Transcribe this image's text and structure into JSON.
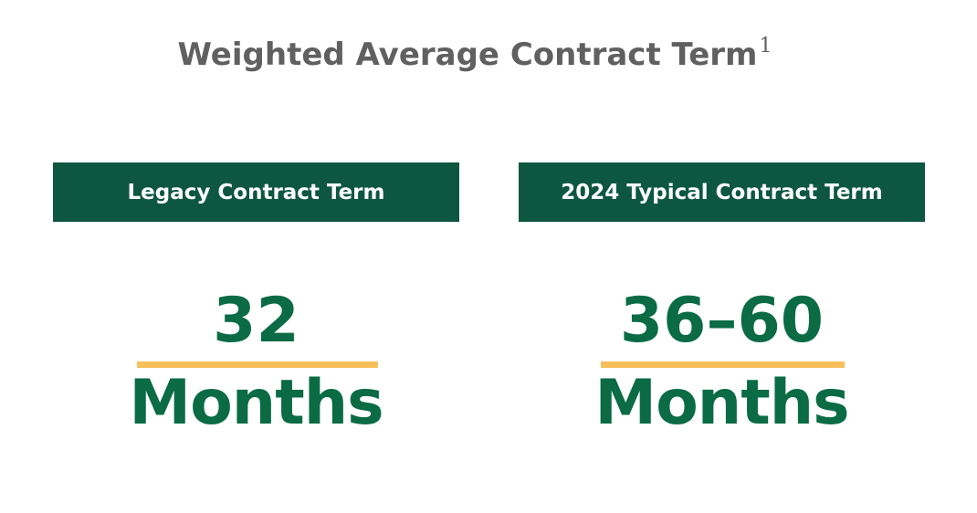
{
  "title": {
    "text": "Weighted Average Contract Term",
    "footnote": "1"
  },
  "panels": [
    {
      "header": "Legacy Contract Term",
      "value": "32",
      "unit": "Months"
    },
    {
      "header": "2024 Typical Contract Term",
      "value": "36–60",
      "unit": "Months"
    }
  ]
}
